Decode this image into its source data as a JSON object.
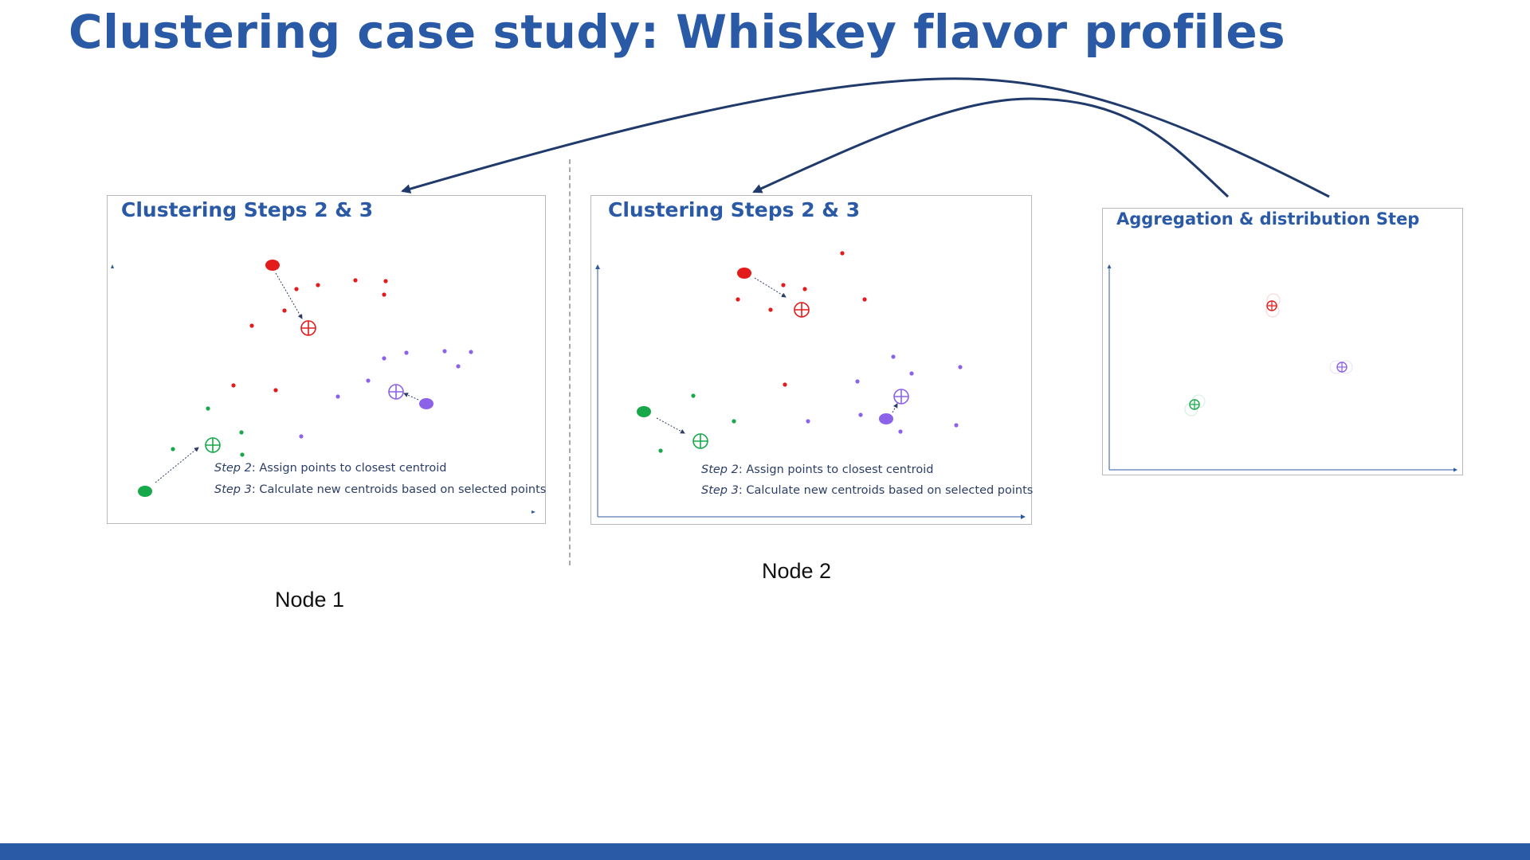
{
  "slide": {
    "title": "Clustering case study: Whiskey flavor profiles"
  },
  "panels": {
    "node1": {
      "title": "Clustering Steps 2 & 3",
      "step2_label": "Step 2",
      "step2_text": ": Assign points to closest centroid",
      "step3_label": "Step 3",
      "step3_text": ": Calculate new centroids based on selected points",
      "node_label": "Node 1"
    },
    "node2": {
      "title": "Clustering Steps 2 & 3",
      "step2_label": "Step 2",
      "step2_text": ": Assign points to closest centroid",
      "step3_label": "Step 3",
      "step3_text": ": Calculate new centroids based on selected points",
      "node_label": "Node 2"
    },
    "aggregation": {
      "title": "Aggregation & distribution Step"
    }
  },
  "colors": {
    "title": "#2a5aa6",
    "cluster_red": "#e31b1b",
    "cluster_green": "#17a84a",
    "cluster_purple": "#8c62e8",
    "arrow": "#1f3a6b",
    "footer": "#2a5aa6"
  }
}
